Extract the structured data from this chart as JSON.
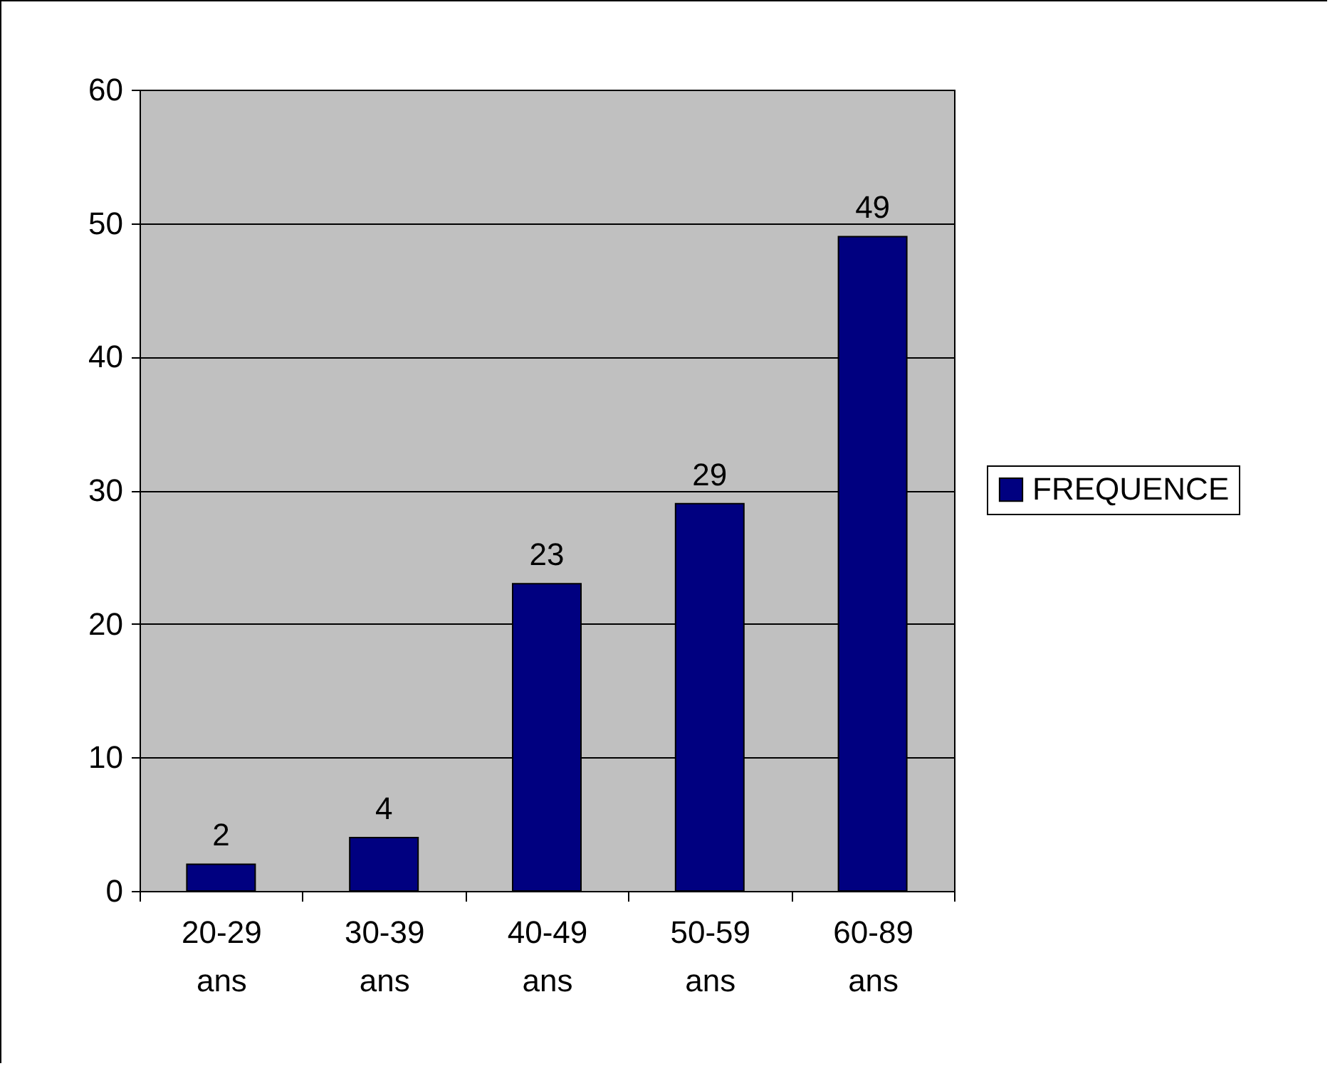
{
  "chart_data": {
    "type": "bar",
    "categories": [
      "20-29 ans",
      "30-39 ans",
      "40-49 ans",
      "50-59 ans",
      "60-89 ans"
    ],
    "series": [
      {
        "name": "FREQUENCE",
        "color": "#000080",
        "values": [
          2,
          4,
          23,
          29,
          49
        ]
      }
    ],
    "ylim": [
      0,
      60
    ],
    "yticks": [
      0,
      10,
      20,
      30,
      40,
      50,
      60
    ],
    "grid": "y",
    "legend": "right",
    "data_labels": true
  }
}
